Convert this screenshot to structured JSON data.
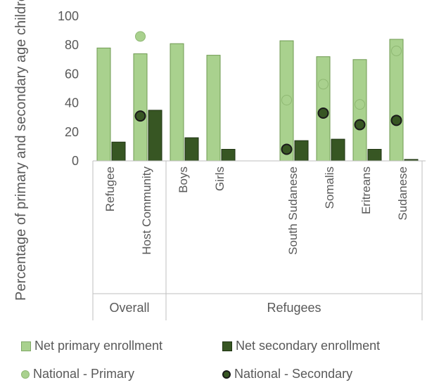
{
  "chart_data": {
    "type": "bar",
    "ylabel": "Percentage of primary and secondary age children",
    "ylim": [
      0,
      100
    ],
    "yticks": [
      0,
      20,
      40,
      60,
      80,
      100
    ],
    "groups": [
      {
        "name": "Overall",
        "categories": [
          "Refugee",
          "Host Community"
        ]
      },
      {
        "name": "Refugees",
        "categories": [
          "Boys",
          "Girls",
          "",
          "South Sudanese",
          "Somalis",
          "Eritreans",
          "Sudanese"
        ]
      }
    ],
    "categories": [
      "Refugee",
      "Host Community",
      "Boys",
      "Girls",
      "",
      "South Sudanese",
      "Somalis",
      "Eritreans",
      "Sudanese"
    ],
    "series": [
      {
        "name": "Net primary enrollment",
        "kind": "bar",
        "color": "#a9d18e",
        "values": [
          78,
          74,
          81,
          73,
          null,
          83,
          72,
          70,
          84
        ]
      },
      {
        "name": "Net secondary enrollment",
        "kind": "bar",
        "color": "#375623",
        "values": [
          13,
          35,
          16,
          8,
          null,
          14,
          15,
          8,
          1
        ]
      },
      {
        "name": "National - Primary",
        "kind": "marker",
        "color": "#a9d18e",
        "values": [
          null,
          86,
          null,
          null,
          null,
          42,
          53,
          39,
          76
        ]
      },
      {
        "name": "National - Secondary",
        "kind": "marker",
        "color": "#375623",
        "values": [
          null,
          31,
          null,
          null,
          null,
          8,
          33,
          25,
          28
        ]
      }
    ],
    "legend_position": "bottom",
    "grid": false
  }
}
